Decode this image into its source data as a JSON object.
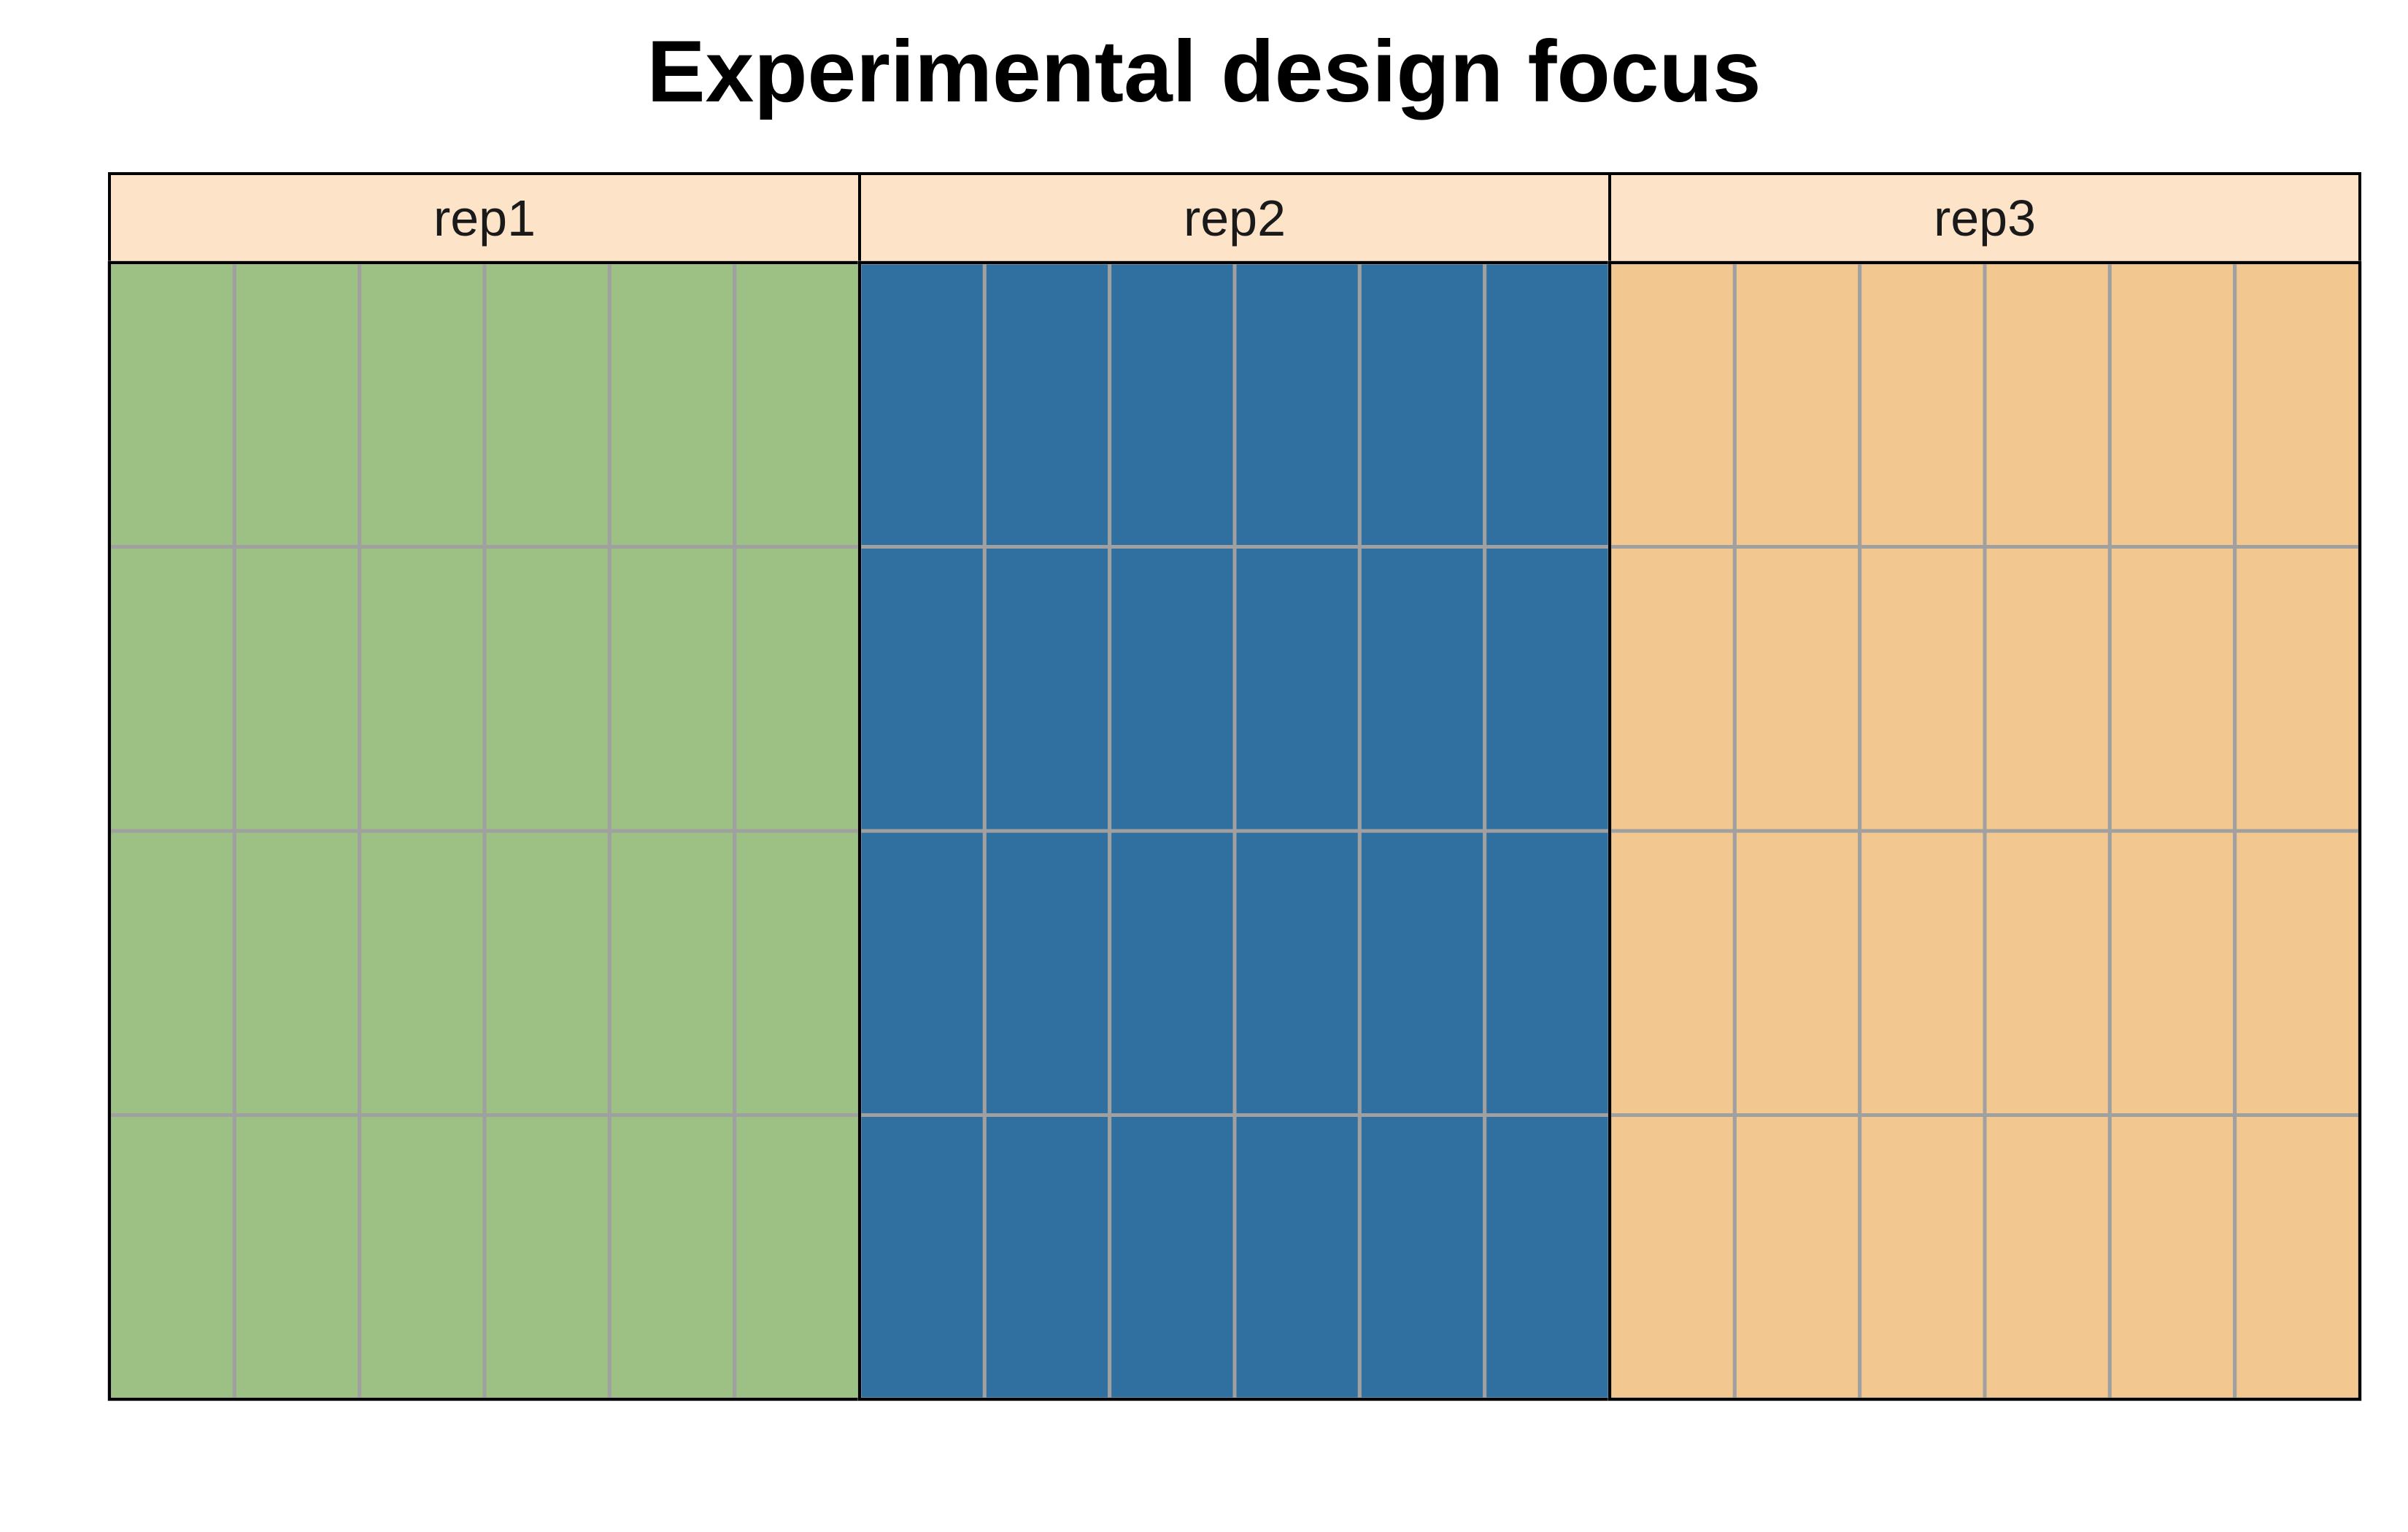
{
  "title": "Experimental design focus",
  "design": {
    "rows": 4,
    "columns_per_rep": 6,
    "reps": [
      {
        "label": "rep1",
        "color": "#9dc185"
      },
      {
        "label": "rep2",
        "color": "#3070a0"
      },
      {
        "label": "rep3",
        "color": "#f2c890"
      }
    ]
  },
  "colors": {
    "strip_background": "#fde4c9",
    "grid_line": "#a0a0a0",
    "border": "#000000"
  }
}
